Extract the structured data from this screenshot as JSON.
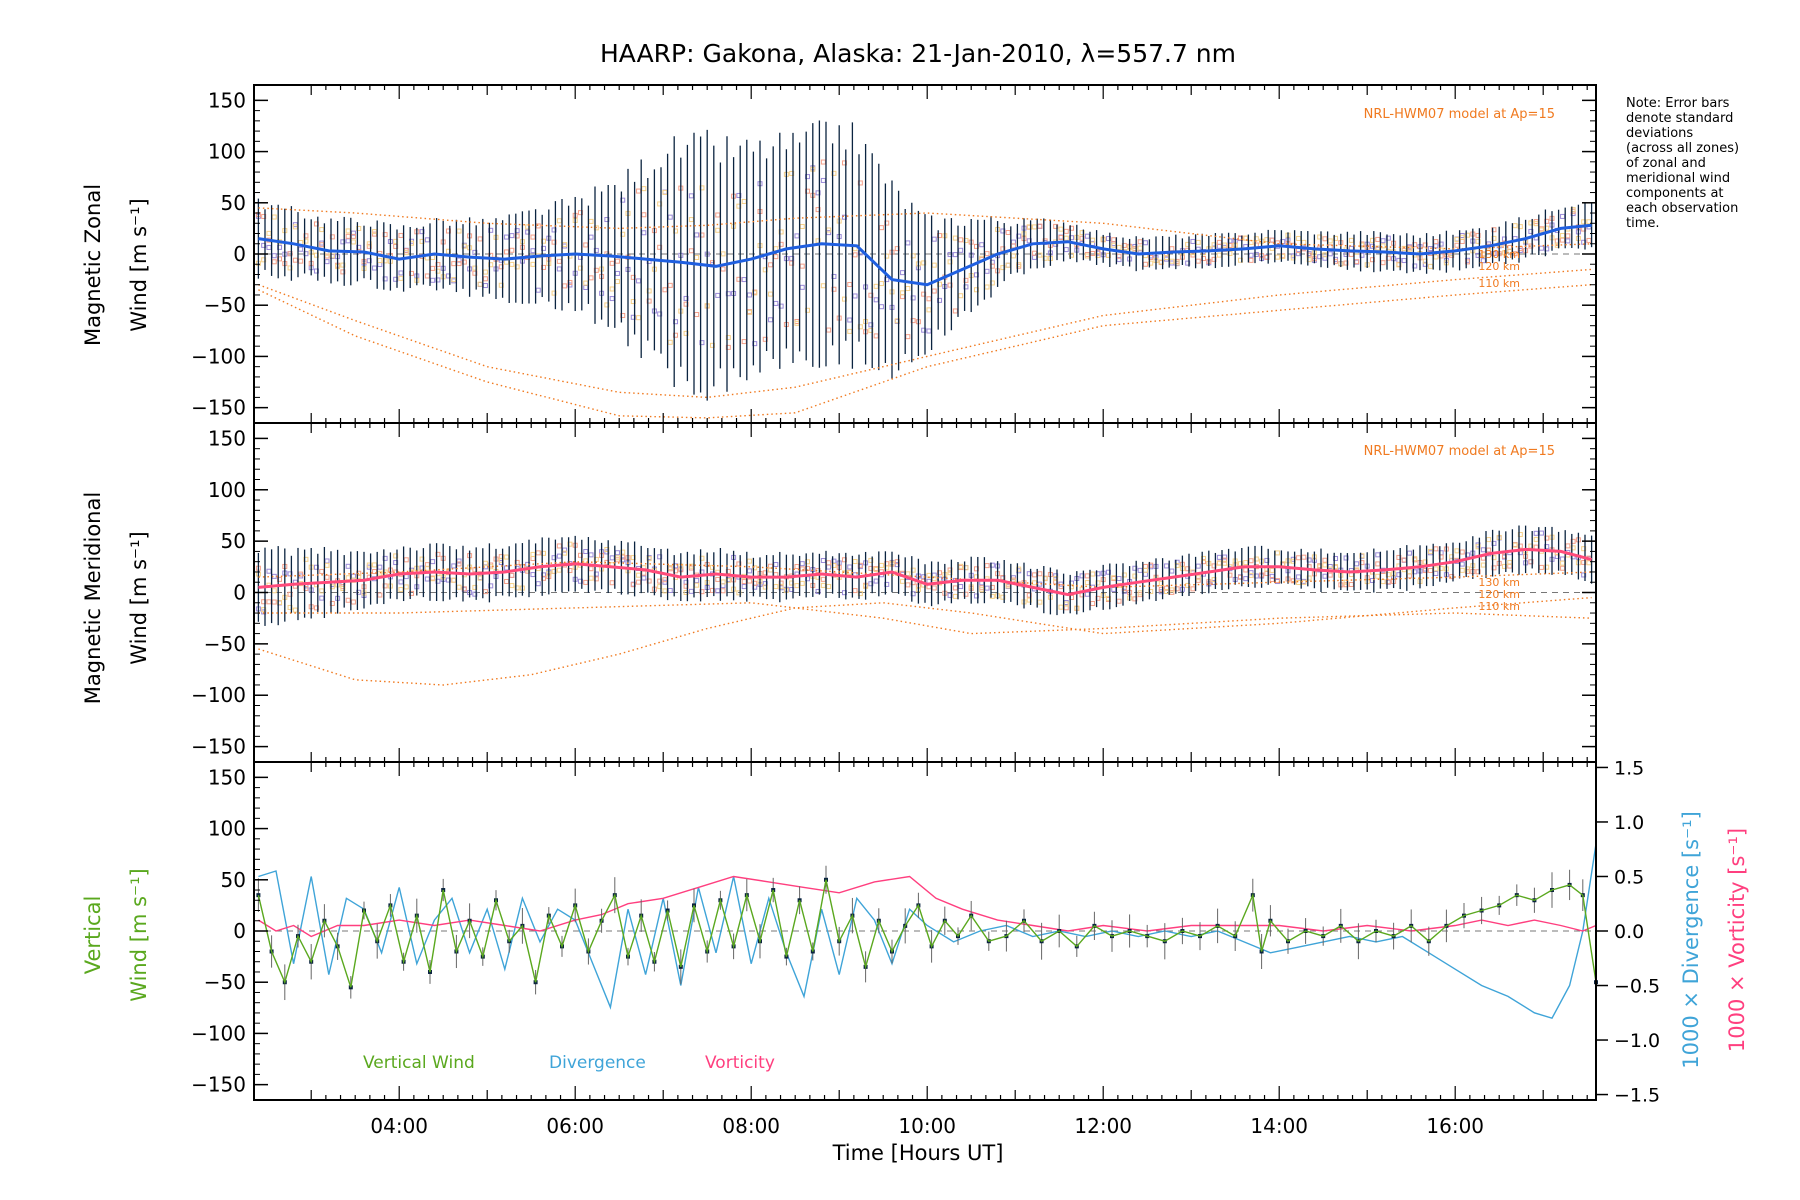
{
  "title": "HAARP: Gakona,  Alaska: 21-Jan-2010, λ=557.7 nm",
  "xlabel": "Time [Hours UT]",
  "note_lines": [
    "Note: Error bars",
    "denote standard",
    "deviations",
    "(across all zones)",
    "of zonal and",
    "meridional wind",
    "components at",
    "each observation",
    "time."
  ],
  "colors": {
    "zonal_mean": "#1f5fe0",
    "meridional_mean": "#ff4a7a",
    "vertical": "#5aa81e",
    "divergence": "#3fa4d8",
    "vorticity": "#ff3f7f",
    "model": "#f07a20",
    "errorbar": "#0b2440",
    "scatter": "#9a8ad8",
    "scatter_salmon": "#f4a08a",
    "scatter_yellow": "#f6d18a"
  },
  "chart_data": [
    {
      "type": "line",
      "panel": "top",
      "ylabel_line1": "Magnetic Zonal",
      "ylabel_line2": "Wind [m s⁻¹]",
      "model_label": "NRL-HWM07 model at Ap=15",
      "altitude_labels": [
        "130 km",
        "120 km",
        "110 km"
      ],
      "xlim": [
        2.35,
        17.6
      ],
      "ylim": [
        -165,
        165
      ],
      "yticks": [
        -150,
        -100,
        -50,
        0,
        50,
        100,
        150
      ],
      "xticks": [
        4,
        6,
        8,
        10,
        12,
        14,
        16
      ],
      "xtick_labels": [
        "04:00",
        "06:00",
        "08:00",
        "10:00",
        "12:00",
        "14:00",
        "16:00"
      ],
      "series": [
        {
          "role": "mean",
          "x": [
            2.4,
            2.8,
            3.2,
            3.6,
            4.0,
            4.4,
            4.8,
            5.2,
            5.6,
            6.0,
            6.4,
            6.8,
            7.2,
            7.6,
            8.0,
            8.4,
            8.8,
            9.2,
            9.6,
            10.0,
            10.4,
            10.8,
            11.2,
            11.6,
            12.0,
            12.4,
            12.8,
            13.2,
            13.6,
            14.0,
            14.4,
            14.8,
            15.2,
            15.6,
            16.0,
            16.4,
            16.8,
            17.2,
            17.55
          ],
          "y": [
            15,
            10,
            3,
            2,
            -5,
            0,
            -3,
            -5,
            -2,
            0,
            -2,
            -5,
            -8,
            -12,
            -5,
            5,
            10,
            8,
            -25,
            -30,
            -15,
            0,
            10,
            12,
            5,
            0,
            2,
            3,
            5,
            8,
            5,
            3,
            2,
            0,
            3,
            8,
            15,
            25,
            28
          ]
        },
        {
          "role": "errorbar_halfwidth",
          "x": [
            2.4,
            3.0,
            4.0,
            5.0,
            6.0,
            6.5,
            7.0,
            7.5,
            8.0,
            8.5,
            9.0,
            9.5,
            10.0,
            10.5,
            11.0,
            12.0,
            13.0,
            14.0,
            15.0,
            16.0,
            17.0,
            17.5
          ],
          "y": [
            35,
            30,
            30,
            35,
            50,
            70,
            105,
            115,
            105,
            100,
            110,
            95,
            60,
            45,
            25,
            15,
            15,
            15,
            18,
            18,
            20,
            25
          ]
        },
        {
          "role": "model_110km",
          "x": [
            2.4,
            3.5,
            5.0,
            6.5,
            7.5,
            8.5,
            10.0,
            12.0,
            14.0,
            16.0,
            17.55
          ],
          "y": [
            -35,
            -80,
            -125,
            -158,
            -160,
            -155,
            -110,
            -70,
            -55,
            -40,
            -30
          ]
        },
        {
          "role": "model_120km",
          "x": [
            2.4,
            3.5,
            5.0,
            6.5,
            7.5,
            8.5,
            10.0,
            12.0,
            14.0,
            16.0,
            17.55
          ],
          "y": [
            -30,
            -65,
            -110,
            -135,
            -140,
            -130,
            -100,
            -60,
            -40,
            -25,
            -15
          ]
        },
        {
          "role": "model_130km",
          "x": [
            2.4,
            3.5,
            5.0,
            6.5,
            7.5,
            8.5,
            10.0,
            12.0,
            14.0,
            16.0,
            17.55
          ],
          "y": [
            45,
            40,
            30,
            25,
            28,
            35,
            40,
            30,
            10,
            5,
            10
          ]
        }
      ]
    },
    {
      "type": "line",
      "panel": "middle",
      "ylabel_line1": "Magnetic Meridional",
      "ylabel_line2": "Wind [m s⁻¹]",
      "model_label": "NRL-HWM07 model at Ap=15",
      "altitude_labels": [
        "130 km",
        "120 km",
        "110 km"
      ],
      "xlim": [
        2.35,
        17.6
      ],
      "ylim": [
        -165,
        165
      ],
      "yticks": [
        -150,
        -100,
        -50,
        0,
        50,
        100,
        150
      ],
      "series": [
        {
          "role": "mean",
          "x": [
            2.4,
            2.8,
            3.2,
            3.6,
            4.0,
            4.4,
            4.8,
            5.2,
            5.6,
            6.0,
            6.4,
            6.8,
            7.2,
            7.6,
            8.0,
            8.4,
            8.8,
            9.2,
            9.6,
            10.0,
            10.4,
            10.8,
            11.2,
            11.6,
            12.0,
            12.4,
            12.8,
            13.2,
            13.6,
            14.0,
            14.4,
            14.8,
            15.2,
            15.6,
            16.0,
            16.4,
            16.8,
            17.2,
            17.55
          ],
          "y": [
            5,
            8,
            10,
            12,
            18,
            20,
            18,
            20,
            25,
            28,
            25,
            22,
            15,
            18,
            15,
            15,
            18,
            15,
            20,
            8,
            12,
            12,
            5,
            -2,
            5,
            10,
            15,
            20,
            25,
            25,
            22,
            20,
            22,
            25,
            30,
            38,
            42,
            40,
            32
          ]
        },
        {
          "role": "errorbar_halfwidth",
          "x": [
            2.4,
            4.0,
            6.0,
            8.0,
            10.0,
            12.0,
            14.0,
            16.0,
            17.5
          ],
          "y": [
            35,
            25,
            25,
            22,
            20,
            20,
            18,
            20,
            22
          ]
        },
        {
          "role": "model_110km",
          "x": [
            2.4,
            3.5,
            4.5,
            5.5,
            6.5,
            7.5,
            8.5,
            9.5,
            10.5,
            12.0,
            14.0,
            16.0,
            17.55
          ],
          "y": [
            -55,
            -85,
            -90,
            -80,
            -60,
            -35,
            -15,
            -10,
            -20,
            -40,
            -30,
            -15,
            -5
          ]
        },
        {
          "role": "model_120km",
          "x": [
            2.4,
            4.0,
            6.0,
            8.0,
            9.5,
            10.5,
            12.0,
            14.0,
            16.0,
            17.55
          ],
          "y": [
            -20,
            -20,
            -15,
            -10,
            -25,
            -40,
            -35,
            -25,
            -20,
            -25
          ]
        },
        {
          "role": "model_130km",
          "x": [
            2.4,
            4.0,
            6.0,
            8.0,
            10.0,
            12.0,
            14.0,
            16.0,
            17.55
          ],
          "y": [
            15,
            20,
            30,
            25,
            15,
            5,
            10,
            15,
            20
          ]
        }
      ]
    },
    {
      "type": "line",
      "panel": "bottom",
      "ylabel_line1": "Vertical",
      "ylabel_line2": "Wind [m s⁻¹]",
      "y2label_divergence": "1000 × Divergence [s⁻¹]",
      "y2label_vorticity": "1000 × Vorticity [s⁻¹]",
      "xlim": [
        2.35,
        17.6
      ],
      "ylim": [
        -165,
        165
      ],
      "yticks": [
        -150,
        -100,
        -50,
        0,
        50,
        100,
        150
      ],
      "y2lim": [
        -1.55,
        1.55
      ],
      "y2ticks": [
        -1.5,
        -1.0,
        -0.5,
        0.0,
        0.5,
        1.0,
        1.5
      ],
      "y2tick_labels": [
        "−1.5",
        "−1.0",
        "−0.5",
        "0.0",
        "0.5",
        "1.0",
        "1.5"
      ],
      "legend": [
        "Vertical Wind",
        "Divergence",
        "Vorticity"
      ],
      "series": [
        {
          "name": "Vertical Wind",
          "axis": "left",
          "x": [
            2.4,
            2.55,
            2.7,
            2.85,
            3.0,
            3.15,
            3.3,
            3.45,
            3.6,
            3.75,
            3.9,
            4.05,
            4.2,
            4.35,
            4.5,
            4.65,
            4.8,
            4.95,
            5.1,
            5.25,
            5.4,
            5.55,
            5.7,
            5.85,
            6.0,
            6.15,
            6.3,
            6.45,
            6.6,
            6.75,
            6.9,
            7.05,
            7.2,
            7.35,
            7.5,
            7.65,
            7.8,
            7.95,
            8.1,
            8.25,
            8.4,
            8.55,
            8.7,
            8.85,
            9.0,
            9.15,
            9.3,
            9.45,
            9.6,
            9.75,
            9.9,
            10.05,
            10.2,
            10.35,
            10.5,
            10.7,
            10.9,
            11.1,
            11.3,
            11.5,
            11.7,
            11.9,
            12.1,
            12.3,
            12.5,
            12.7,
            12.9,
            13.1,
            13.3,
            13.5,
            13.7,
            13.8,
            13.9,
            14.1,
            14.3,
            14.5,
            14.7,
            14.9,
            15.1,
            15.3,
            15.5,
            15.7,
            15.9,
            16.1,
            16.3,
            16.5,
            16.7,
            16.9,
            17.1,
            17.3,
            17.45,
            17.6
          ],
          "y": [
            35,
            -20,
            -50,
            -5,
            -30,
            10,
            -15,
            -55,
            20,
            -10,
            25,
            -30,
            15,
            -40,
            40,
            -20,
            10,
            -25,
            30,
            -10,
            5,
            -50,
            15,
            -15,
            25,
            -20,
            10,
            35,
            -25,
            15,
            -30,
            20,
            -35,
            25,
            -20,
            30,
            -15,
            35,
            -10,
            40,
            -25,
            30,
            -20,
            50,
            -10,
            15,
            -35,
            10,
            -20,
            5,
            25,
            -15,
            10,
            -5,
            15,
            -10,
            -5,
            10,
            -10,
            0,
            -15,
            5,
            -5,
            0,
            -5,
            -10,
            0,
            -5,
            5,
            -5,
            35,
            -20,
            10,
            -10,
            0,
            -5,
            5,
            -10,
            0,
            -5,
            5,
            -10,
            5,
            15,
            20,
            25,
            35,
            30,
            40,
            45,
            35,
            -50
          ]
        },
        {
          "name": "Divergence",
          "axis": "right",
          "x": [
            2.4,
            2.6,
            2.8,
            3.0,
            3.2,
            3.4,
            3.6,
            3.8,
            4.0,
            4.2,
            4.4,
            4.6,
            4.8,
            5.0,
            5.2,
            5.4,
            5.6,
            5.8,
            6.0,
            6.2,
            6.4,
            6.6,
            6.8,
            7.0,
            7.2,
            7.4,
            7.6,
            7.8,
            8.0,
            8.2,
            8.4,
            8.6,
            8.8,
            9.0,
            9.2,
            9.4,
            9.6,
            9.8,
            10.0,
            10.3,
            10.6,
            10.9,
            11.2,
            11.5,
            11.8,
            12.1,
            12.4,
            12.7,
            13.0,
            13.3,
            13.6,
            13.9,
            14.2,
            14.5,
            14.8,
            15.1,
            15.4,
            15.7,
            16.0,
            16.3,
            16.6,
            16.9,
            17.1,
            17.3,
            17.45,
            17.6
          ],
          "y": [
            0.5,
            0.55,
            -0.3,
            0.5,
            -0.4,
            0.3,
            0.2,
            -0.2,
            0.4,
            -0.3,
            0.1,
            0.3,
            -0.2,
            0.2,
            -0.35,
            0.3,
            -0.1,
            0.2,
            0.1,
            -0.3,
            -0.7,
            0.2,
            -0.4,
            0.3,
            -0.5,
            0.4,
            -0.2,
            0.5,
            -0.3,
            0.3,
            -0.2,
            -0.6,
            0.2,
            -0.4,
            0.3,
            0.1,
            -0.3,
            0.2,
            0.05,
            -0.1,
            0.0,
            0.05,
            -0.05,
            0.0,
            -0.05,
            0.0,
            -0.05,
            0.0,
            -0.05,
            0.0,
            -0.1,
            -0.2,
            -0.15,
            -0.1,
            -0.05,
            -0.1,
            -0.05,
            -0.2,
            -0.35,
            -0.5,
            -0.6,
            -0.75,
            -0.8,
            -0.5,
            0.0,
            0.8
          ]
        },
        {
          "name": "Vorticity",
          "axis": "right",
          "x": [
            2.4,
            2.6,
            2.8,
            3.0,
            3.3,
            3.6,
            4.0,
            4.4,
            4.8,
            5.2,
            5.6,
            6.0,
            6.3,
            6.6,
            7.0,
            7.4,
            7.8,
            8.2,
            8.6,
            9.0,
            9.4,
            9.8,
            10.1,
            10.4,
            10.8,
            11.2,
            11.6,
            12.0,
            12.5,
            13.0,
            13.5,
            14.0,
            14.5,
            15.0,
            15.5,
            16.0,
            16.3,
            16.6,
            16.9,
            17.2,
            17.45,
            17.6
          ],
          "y": [
            0.1,
            0.0,
            0.05,
            -0.05,
            0.05,
            0.05,
            0.1,
            0.05,
            0.1,
            0.05,
            0.0,
            0.1,
            0.15,
            0.25,
            0.3,
            0.4,
            0.5,
            0.45,
            0.4,
            0.35,
            0.45,
            0.5,
            0.3,
            0.2,
            0.1,
            0.05,
            0.0,
            0.05,
            0.0,
            0.05,
            0.05,
            0.05,
            0.0,
            0.05,
            0.0,
            0.05,
            0.1,
            0.05,
            0.1,
            0.05,
            0.0,
            0.05
          ]
        }
      ]
    }
  ]
}
